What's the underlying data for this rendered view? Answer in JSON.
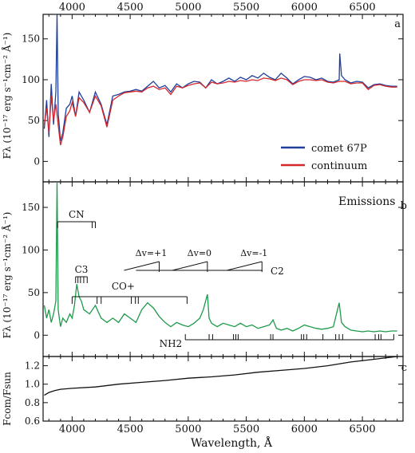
{
  "chart_data": [
    {
      "panel": "a",
      "type": "line",
      "ylabel": "Fλ (10⁻¹⁷ erg s⁻¹cm⁻² Å⁻¹)",
      "xlim": [
        3750,
        6850
      ],
      "ylim": [
        -25,
        180
      ],
      "x_ticks": [
        4000,
        4500,
        5000,
        5500,
        6000,
        6500
      ],
      "y_ticks": [
        0,
        50,
        100,
        150
      ],
      "legend_position": "bottom-right",
      "series": [
        {
          "name": "comet 67P",
          "color": "#1f3f9c",
          "points": [
            [
              3760,
              40
            ],
            [
              3780,
              75
            ],
            [
              3800,
              30
            ],
            [
              3820,
              95
            ],
            [
              3840,
              45
            ],
            [
              3860,
              85
            ],
            [
              3870,
              180
            ],
            [
              3880,
              60
            ],
            [
              3900,
              25
            ],
            [
              3920,
              35
            ],
            [
              3950,
              65
            ],
            [
              3980,
              70
            ],
            [
              4000,
              80
            ],
            [
              4030,
              55
            ],
            [
              4060,
              85
            ],
            [
              4100,
              75
            ],
            [
              4150,
              60
            ],
            [
              4200,
              85
            ],
            [
              4250,
              70
            ],
            [
              4300,
              45
            ],
            [
              4350,
              80
            ],
            [
              4400,
              82
            ],
            [
              4450,
              85
            ],
            [
              4500,
              86
            ],
            [
              4550,
              88
            ],
            [
              4600,
              86
            ],
            [
              4650,
              92
            ],
            [
              4700,
              98
            ],
            [
              4750,
              90
            ],
            [
              4800,
              93
            ],
            [
              4850,
              85
            ],
            [
              4900,
              95
            ],
            [
              4950,
              90
            ],
            [
              5000,
              95
            ],
            [
              5050,
              98
            ],
            [
              5100,
              97
            ],
            [
              5150,
              90
            ],
            [
              5200,
              100
            ],
            [
              5250,
              95
            ],
            [
              5300,
              98
            ],
            [
              5350,
              102
            ],
            [
              5400,
              98
            ],
            [
              5450,
              103
            ],
            [
              5500,
              100
            ],
            [
              5550,
              105
            ],
            [
              5600,
              102
            ],
            [
              5650,
              108
            ],
            [
              5700,
              103
            ],
            [
              5750,
              100
            ],
            [
              5800,
              108
            ],
            [
              5850,
              102
            ],
            [
              5900,
              95
            ],
            [
              5950,
              100
            ],
            [
              6000,
              104
            ],
            [
              6050,
              103
            ],
            [
              6100,
              100
            ],
            [
              6150,
              102
            ],
            [
              6200,
              98
            ],
            [
              6250,
              97
            ],
            [
              6300,
              100
            ],
            [
              6305,
              132
            ],
            [
              6320,
              105
            ],
            [
              6350,
              100
            ],
            [
              6400,
              96
            ],
            [
              6450,
              98
            ],
            [
              6500,
              97
            ],
            [
              6550,
              90
            ],
            [
              6600,
              94
            ],
            [
              6650,
              95
            ],
            [
              6700,
              93
            ],
            [
              6750,
              92
            ],
            [
              6800,
              92
            ]
          ]
        },
        {
          "name": "continuum",
          "color": "#d6272b",
          "points": [
            [
              3760,
              45
            ],
            [
              3780,
              65
            ],
            [
              3800,
              35
            ],
            [
              3820,
              80
            ],
            [
              3840,
              50
            ],
            [
              3860,
              70
            ],
            [
              3880,
              45
            ],
            [
              3900,
              20
            ],
            [
              3920,
              30
            ],
            [
              3950,
              55
            ],
            [
              3980,
              62
            ],
            [
              4000,
              72
            ],
            [
              4030,
              55
            ],
            [
              4060,
              78
            ],
            [
              4100,
              72
            ],
            [
              4150,
              60
            ],
            [
              4200,
              80
            ],
            [
              4250,
              68
            ],
            [
              4300,
              42
            ],
            [
              4350,
              75
            ],
            [
              4400,
              80
            ],
            [
              4450,
              84
            ],
            [
              4500,
              85
            ],
            [
              4550,
              86
            ],
            [
              4600,
              85
            ],
            [
              4650,
              90
            ],
            [
              4700,
              92
            ],
            [
              4750,
              88
            ],
            [
              4800,
              90
            ],
            [
              4850,
              82
            ],
            [
              4900,
              92
            ],
            [
              4950,
              90
            ],
            [
              5000,
              93
            ],
            [
              5050,
              95
            ],
            [
              5100,
              96
            ],
            [
              5150,
              90
            ],
            [
              5200,
              97
            ],
            [
              5250,
              95
            ],
            [
              5300,
              96
            ],
            [
              5350,
              98
            ],
            [
              5400,
              97
            ],
            [
              5450,
              99
            ],
            [
              5500,
              98
            ],
            [
              5550,
              100
            ],
            [
              5600,
              99
            ],
            [
              5650,
              102
            ],
            [
              5700,
              101
            ],
            [
              5750,
              99
            ],
            [
              5800,
              102
            ],
            [
              5850,
              100
            ],
            [
              5900,
              94
            ],
            [
              5950,
              98
            ],
            [
              6000,
              100
            ],
            [
              6050,
              100
            ],
            [
              6100,
              99
            ],
            [
              6150,
              100
            ],
            [
              6200,
              97
            ],
            [
              6250,
              96
            ],
            [
              6300,
              98
            ],
            [
              6350,
              98
            ],
            [
              6400,
              95
            ],
            [
              6450,
              96
            ],
            [
              6500,
              96
            ],
            [
              6550,
              88
            ],
            [
              6600,
              93
            ],
            [
              6650,
              94
            ],
            [
              6700,
              92
            ],
            [
              6750,
              91
            ],
            [
              6800,
              91
            ]
          ]
        }
      ]
    },
    {
      "panel": "b",
      "type": "line",
      "title": "Emissions",
      "ylabel": "Fλ (10⁻¹⁷ erg s⁻¹cm⁻² Å⁻¹)",
      "xlim": [
        3750,
        6850
      ],
      "ylim": [
        -25,
        180
      ],
      "x_ticks": [
        4000,
        4500,
        5000,
        5500,
        6000,
        6500
      ],
      "y_ticks": [
        0,
        50,
        100,
        150
      ],
      "series": [
        {
          "name": "",
          "color": "#1e9a4b",
          "points": [
            [
              3760,
              35
            ],
            [
              3780,
              20
            ],
            [
              3800,
              30
            ],
            [
              3820,
              15
            ],
            [
              3840,
              25
            ],
            [
              3860,
              40
            ],
            [
              3870,
              180
            ],
            [
              3880,
              30
            ],
            [
              3900,
              10
            ],
            [
              3920,
              20
            ],
            [
              3950,
              15
            ],
            [
              3980,
              25
            ],
            [
              4000,
              20
            ],
            [
              4020,
              35
            ],
            [
              4040,
              60
            ],
            [
              4060,
              45
            ],
            [
              4080,
              40
            ],
            [
              4100,
              30
            ],
            [
              4150,
              25
            ],
            [
              4200,
              35
            ],
            [
              4250,
              20
            ],
            [
              4300,
              15
            ],
            [
              4350,
              20
            ],
            [
              4400,
              15
            ],
            [
              4450,
              25
            ],
            [
              4500,
              20
            ],
            [
              4550,
              15
            ],
            [
              4600,
              30
            ],
            [
              4650,
              38
            ],
            [
              4700,
              32
            ],
            [
              4750,
              22
            ],
            [
              4800,
              15
            ],
            [
              4850,
              10
            ],
            [
              4900,
              15
            ],
            [
              4950,
              12
            ],
            [
              5000,
              10
            ],
            [
              5050,
              14
            ],
            [
              5100,
              20
            ],
            [
              5130,
              30
            ],
            [
              5165,
              48
            ],
            [
              5180,
              20
            ],
            [
              5200,
              14
            ],
            [
              5250,
              10
            ],
            [
              5300,
              14
            ],
            [
              5350,
              12
            ],
            [
              5400,
              10
            ],
            [
              5450,
              14
            ],
            [
              5500,
              10
            ],
            [
              5550,
              12
            ],
            [
              5600,
              8
            ],
            [
              5650,
              10
            ],
            [
              5700,
              12
            ],
            [
              5730,
              18
            ],
            [
              5760,
              8
            ],
            [
              5800,
              6
            ],
            [
              5850,
              8
            ],
            [
              5900,
              5
            ],
            [
              5950,
              8
            ],
            [
              6000,
              12
            ],
            [
              6050,
              10
            ],
            [
              6100,
              8
            ],
            [
              6150,
              7
            ],
            [
              6200,
              8
            ],
            [
              6250,
              10
            ],
            [
              6300,
              38
            ],
            [
              6320,
              15
            ],
            [
              6350,
              10
            ],
            [
              6400,
              6
            ],
            [
              6450,
              5
            ],
            [
              6500,
              4
            ],
            [
              6550,
              5
            ],
            [
              6600,
              4
            ],
            [
              6650,
              5
            ],
            [
              6700,
              4
            ],
            [
              6750,
              5
            ],
            [
              6800,
              5
            ]
          ]
        }
      ],
      "annotations": {
        "CN": {
          "label": "CN",
          "range": [
            3875,
            4200
          ]
        },
        "C3": {
          "label": "C3",
          "range": [
            4030,
            4130
          ]
        },
        "CO_plus": {
          "label": "CO+",
          "range": [
            4000,
            4990
          ]
        },
        "C2": {
          "label": "C2",
          "range": [
            4550,
            5640
          ]
        },
        "C2_sequences": [
          {
            "label": "Δv=+1",
            "head": 4750
          },
          {
            "label": "Δv=0",
            "head": 5165
          },
          {
            "label": "Δv=-1",
            "head": 5635
          }
        ],
        "NH2": {
          "label": "NH2",
          "range": [
            4975,
            6770
          ]
        }
      }
    },
    {
      "panel": "c",
      "type": "line",
      "xlabel": "Wavelength, Å",
      "ylabel": "Fcom/Fsun",
      "xlim": [
        3750,
        6850
      ],
      "ylim": [
        0.6,
        1.3
      ],
      "x_ticks": [
        4000,
        4500,
        5000,
        5500,
        6000,
        6500
      ],
      "y_ticks": [
        0.6,
        0.8,
        1.0,
        1.2
      ],
      "series": [
        {
          "name": "",
          "color": "#111111",
          "points": [
            [
              3760,
              0.88
            ],
            [
              3800,
              0.91
            ],
            [
              3850,
              0.93
            ],
            [
              3900,
              0.945
            ],
            [
              4000,
              0.955
            ],
            [
              4200,
              0.97
            ],
            [
              4400,
              1.0
            ],
            [
              4600,
              1.02
            ],
            [
              4800,
              1.04
            ],
            [
              5000,
              1.065
            ],
            [
              5200,
              1.08
            ],
            [
              5400,
              1.1
            ],
            [
              5600,
              1.13
            ],
            [
              5800,
              1.15
            ],
            [
              6000,
              1.17
            ],
            [
              6200,
              1.2
            ],
            [
              6400,
              1.24
            ],
            [
              6600,
              1.27
            ],
            [
              6800,
              1.3
            ]
          ]
        }
      ]
    }
  ],
  "labels": {
    "panel_a": "a",
    "panel_b": "b",
    "panel_c": "c",
    "legend_comet": "comet 67P",
    "legend_continuum": "continuum",
    "emissions": "Emissions",
    "cn": "CN",
    "c3": "C3",
    "co_plus": "CO+",
    "c2": "C2",
    "nh2": "NH2",
    "dv_p1": "Δv=+1",
    "dv_0": "Δv=0",
    "dv_m1": "Δv=-1",
    "ylabel_ab": "Fλ (10⁻¹⁷ erg s⁻¹cm⁻² Å⁻¹)",
    "ylabel_c": "Fcom/Fsun",
    "xlabel": "Wavelength, Å"
  },
  "colors": {
    "comet": "#1f3f9c",
    "continuum": "#d6272b",
    "emission": "#1e9a4b",
    "ratio": "#111111",
    "axis": "#111111"
  }
}
